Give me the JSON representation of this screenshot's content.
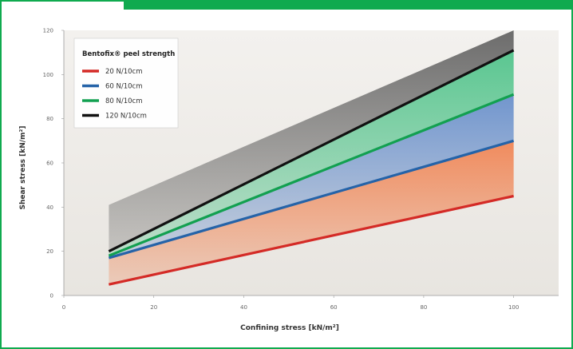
{
  "colors": {
    "accent": "#0faa4f",
    "band_top": "#111111",
    "band_bottom": "#dddddd"
  },
  "chart_data": {
    "type": "line",
    "title": "",
    "xlabel": "Confining stress [kN/m²]",
    "ylabel": "Shear stress [kN/m²]",
    "xlim": [
      0,
      110
    ],
    "ylim": [
      0,
      120
    ],
    "xticks": [
      "0",
      "20",
      "40",
      "60",
      "80",
      "100"
    ],
    "yticks": [
      "0",
      "20",
      "40",
      "60",
      "80",
      "100",
      "120"
    ],
    "grid": false,
    "legend": {
      "title": "Bentofix® peel strength",
      "position": "top-left"
    },
    "series": [
      {
        "name": "20 N/10cm",
        "color": "#d42a26",
        "x": [
          10,
          100
        ],
        "y": [
          5,
          45
        ]
      },
      {
        "name": "60 N/10cm",
        "color": "#2563a8",
        "x": [
          10,
          100
        ],
        "y": [
          17,
          70
        ]
      },
      {
        "name": "80 N/10cm",
        "color": "#12a050",
        "x": [
          10,
          100
        ],
        "y": [
          18,
          91
        ]
      },
      {
        "name": "120 N/10cm",
        "color": "#111111",
        "x": [
          10,
          100
        ],
        "y": [
          20,
          111
        ]
      }
    ],
    "bands": [
      {
        "color": "#f07a45",
        "x": [
          10,
          100
        ],
        "lower": [
          5,
          45
        ],
        "upper": [
          17,
          70
        ]
      },
      {
        "color": "#5b86c8",
        "x": [
          10,
          100
        ],
        "lower": [
          17,
          70
        ],
        "upper": [
          18,
          91
        ]
      },
      {
        "color": "#3fbf80",
        "x": [
          10,
          100
        ],
        "lower": [
          18,
          91
        ],
        "upper": [
          20,
          111
        ]
      },
      {
        "color": "#555555",
        "x": [
          10,
          100
        ],
        "lower": [
          20,
          111
        ],
        "upper": [
          41,
          120
        ]
      }
    ]
  }
}
